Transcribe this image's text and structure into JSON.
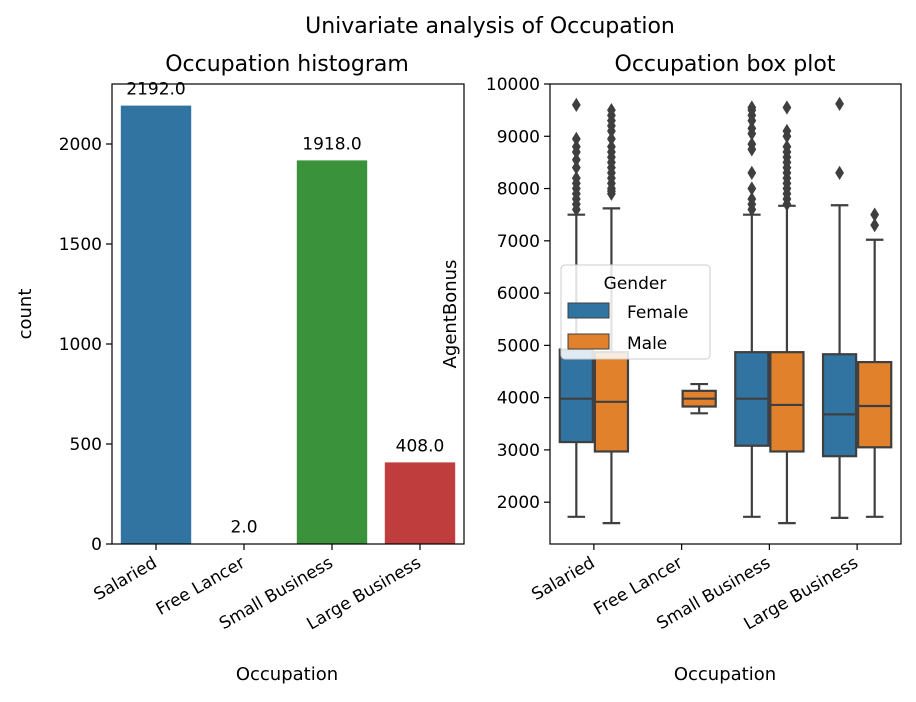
{
  "figure": {
    "suptitle": "Univariate analysis of Occupation"
  },
  "chart_data": [
    {
      "type": "bar",
      "title": "Occupation histogram",
      "xlabel": "Occupation",
      "ylabel": "count",
      "categories": [
        "Salaried",
        "Free Lancer",
        "Small Business",
        "Large Business"
      ],
      "values": [
        2192,
        2,
        1918,
        408
      ],
      "data_labels": [
        "2192.0",
        "2.0",
        "1918.0",
        "408.0"
      ],
      "colors": [
        "#3274a1",
        "#e1812c",
        "#3a923a",
        "#c03d3e"
      ],
      "ylim": [
        0,
        2300
      ],
      "yticks": [
        0,
        500,
        1000,
        1500,
        2000
      ],
      "grid": false
    },
    {
      "type": "box",
      "title": "Occupation box plot",
      "xlabel": "Occupation",
      "ylabel": "AgentBonus",
      "categories": [
        "Salaried",
        "Free Lancer",
        "Small Business",
        "Large Business"
      ],
      "ylim": [
        1200,
        10000
      ],
      "yticks": [
        2000,
        3000,
        4000,
        5000,
        6000,
        7000,
        8000,
        9000,
        10000
      ],
      "grid": false,
      "legend": {
        "title": "Gender",
        "placement": "center-left",
        "entries": [
          {
            "name": "Female",
            "color": "#3274a1"
          },
          {
            "name": "Male",
            "color": "#e1812c"
          }
        ]
      },
      "series": [
        {
          "name": "Female",
          "color": "#3274a1",
          "boxes": [
            {
              "category": "Salaried",
              "whisker_low": 1720,
              "q1": 3150,
              "median": 3980,
              "q3": 4920,
              "whisker_high": 7500,
              "outliers": [
                7600,
                7700,
                7800,
                7900,
                8000,
                8100,
                8200,
                8400,
                8550,
                8700,
                8800,
                8950,
                9600
              ]
            },
            {
              "category": "Small Business",
              "whisker_low": 1720,
              "q1": 3080,
              "median": 3980,
              "q3": 4870,
              "whisker_high": 7500,
              "outliers": [
                7600,
                7700,
                7800,
                8000,
                8300,
                8750,
                8850,
                9050,
                9150,
                9300,
                9400,
                9500,
                9550
              ]
            },
            {
              "category": "Large Business",
              "whisker_low": 1700,
              "q1": 2880,
              "median": 3680,
              "q3": 4830,
              "whisker_high": 7680,
              "outliers": [
                8300,
                9620
              ]
            }
          ]
        },
        {
          "name": "Male",
          "color": "#e1812c",
          "boxes": [
            {
              "category": "Salaried",
              "whisker_low": 1600,
              "q1": 2970,
              "median": 3920,
              "q3": 4870,
              "whisker_high": 7620,
              "outliers": [
                7900,
                7950,
                8000,
                8100,
                8200,
                8300,
                8400,
                8500,
                8600,
                8700,
                8800,
                8950,
                9100,
                9200,
                9300,
                9400,
                9500
              ]
            },
            {
              "category": "Free Lancer",
              "whisker_low": 3700,
              "q1": 3830,
              "median": 3980,
              "q3": 4130,
              "whisker_high": 4260,
              "outliers": []
            },
            {
              "category": "Small Business",
              "whisker_low": 1600,
              "q1": 2970,
              "median": 3860,
              "q3": 4870,
              "whisker_high": 7670,
              "outliers": [
                7700,
                7800,
                7900,
                8000,
                8100,
                8200,
                8300,
                8400,
                8500,
                8600,
                8700,
                8800,
                9000,
                9100,
                9550
              ]
            },
            {
              "category": "Large Business",
              "whisker_low": 1720,
              "q1": 3050,
              "median": 3840,
              "q3": 4680,
              "whisker_high": 7020,
              "outliers": [
                7300,
                7500
              ]
            }
          ]
        }
      ]
    }
  ]
}
